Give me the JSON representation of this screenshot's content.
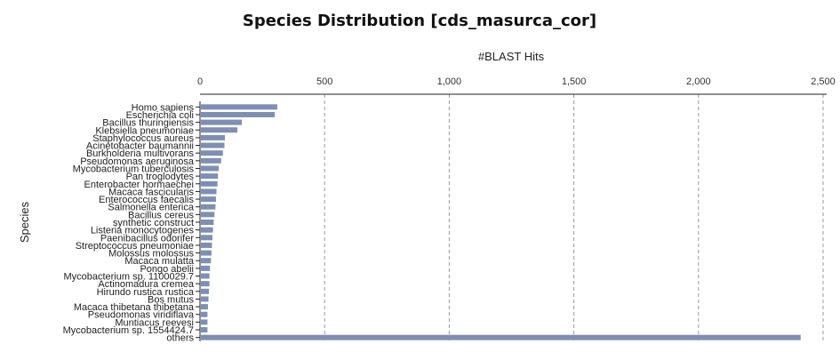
{
  "chart_data": {
    "type": "bar",
    "orientation": "horizontal",
    "title": "Species Distribution [cds_masurca_cor]",
    "xlabel": "#BLAST Hits",
    "ylabel": "Species",
    "xlim": [
      0,
      2500
    ],
    "xticks": [
      0,
      500,
      1000,
      1500,
      2000,
      2500
    ],
    "xtick_labels": [
      "0",
      "500",
      "1,000",
      "1,500",
      "2,000",
      "2,500"
    ],
    "grid": "vertical dashed",
    "bar_color": "#7f8fb3",
    "categories": [
      "Homo sapiens",
      "Escherichia coli",
      "Bacillus thuringiensis",
      "Klebsiella pneumoniae",
      "Staphylococcus aureus",
      "Acinetobacter baumannii",
      "Burkholderia multivorans",
      "Pseudomonas aeruginosa",
      "Mycobacterium tuberculosis",
      "Pan troglodytes",
      "Enterobacter hormaechei",
      "Macaca fascicularis",
      "Enterococcus faecalis",
      "Salmonella enterica",
      "Bacillus cereus",
      "synthetic construct",
      "Listeria monocytogenes",
      "Paenibacillus odorifer",
      "Streptococcus pneumoniae",
      "Molossus molossus",
      "Macaca mulatta",
      "Pongo abelii",
      "Mycobacterium sp. 1100029.7",
      "Actinomadura cremea",
      "Hirundo rustica rustica",
      "Bos mutus",
      "Macaca thibetana thibetana",
      "Pseudomonas viridiflava",
      "Muntiacus reevesi",
      "Mycobacterium sp. 1554424.7",
      "others"
    ],
    "values": [
      310,
      300,
      168,
      150,
      100,
      98,
      92,
      85,
      75,
      72,
      70,
      66,
      64,
      62,
      58,
      55,
      52,
      50,
      48,
      46,
      44,
      40,
      38,
      38,
      36,
      34,
      32,
      30,
      30,
      30,
      2410
    ]
  }
}
